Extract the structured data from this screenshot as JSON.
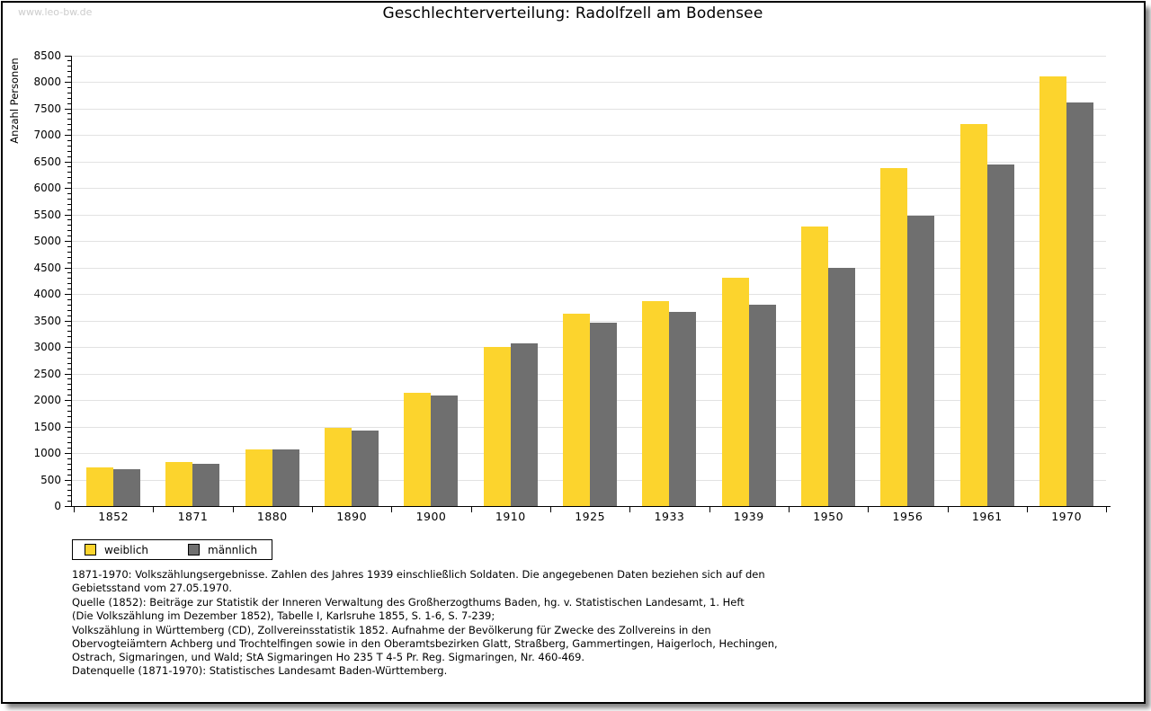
{
  "watermark": "www.leo-bw.de",
  "title": "Geschlechterverteilung: Radolfzell am Bodensee",
  "chart_data": {
    "type": "bar",
    "title": "Geschlechterverteilung: Radolfzell am Bodensee",
    "xlabel": "",
    "ylabel": "Anzahl Personen",
    "ylim": [
      0,
      8500
    ],
    "ytick_step": 500,
    "y_minor_tick_step": 100,
    "grid": "horizontal gridlines every 500, light gray",
    "legend_position": "bottom-left, outside plot",
    "categories": [
      "1852",
      "1871",
      "1880",
      "1890",
      "1900",
      "1910",
      "1925",
      "1933",
      "1939",
      "1950",
      "1956",
      "1961",
      "1970"
    ],
    "series": [
      {
        "name": "weiblich",
        "color": "#FCD42D",
        "values": [
          730,
          830,
          1070,
          1470,
          2140,
          3000,
          3620,
          3860,
          4300,
          5270,
          6370,
          7210,
          8100
        ]
      },
      {
        "name": "männlich",
        "color": "#6F6F6F",
        "values": [
          700,
          800,
          1070,
          1420,
          2090,
          3060,
          3450,
          3660,
          3790,
          4500,
          5480,
          6440,
          7610
        ]
      }
    ]
  },
  "legend": {
    "items": [
      {
        "label": "weiblich",
        "color": "#FCD42D"
      },
      {
        "label": "männlich",
        "color": "#6F6F6F"
      }
    ]
  },
  "notes": {
    "lines": [
      "1871-1970: Volkszählungsergebnisse. Zahlen des Jahres 1939 einschließlich Soldaten. Die angegebenen Daten beziehen sich auf den",
      "Gebietsstand vom 27.05.1970.",
      "Quelle (1852): Beiträge zur Statistik der Inneren Verwaltung des Großherzogthums Baden, hg. v. Statistischen Landesamt, 1. Heft",
      "(Die Volkszählung im Dezember 1852), Tabelle I, Karlsruhe 1855, S. 1-6, S. 7-239;",
      "Volkszählung in Württemberg (CD), Zollvereinsstatistik 1852. Aufnahme der Bevölkerung für Zwecke des Zollvereins in den",
      "Obervogteiämtern Achberg und Trochtelfingen sowie in den Oberamtsbezirken Glatt, Straßberg, Gammertingen, Haigerloch, Hechingen,",
      "Ostrach, Sigmaringen, und Wald; StA Sigmaringen Ho 235 T 4-5 Pr. Reg. Sigmaringen, Nr. 460-469."
    ],
    "datasource": "Datenquelle (1871-1970): Statistisches Landesamt Baden-Württemberg."
  },
  "colors": {
    "weiblich": "#FCD42D",
    "maennlich": "#6F6F6F",
    "gridline": "#E2E2E2",
    "axis": "#000000",
    "watermark": "#CCCCCC",
    "background": "#FFFFFF"
  }
}
